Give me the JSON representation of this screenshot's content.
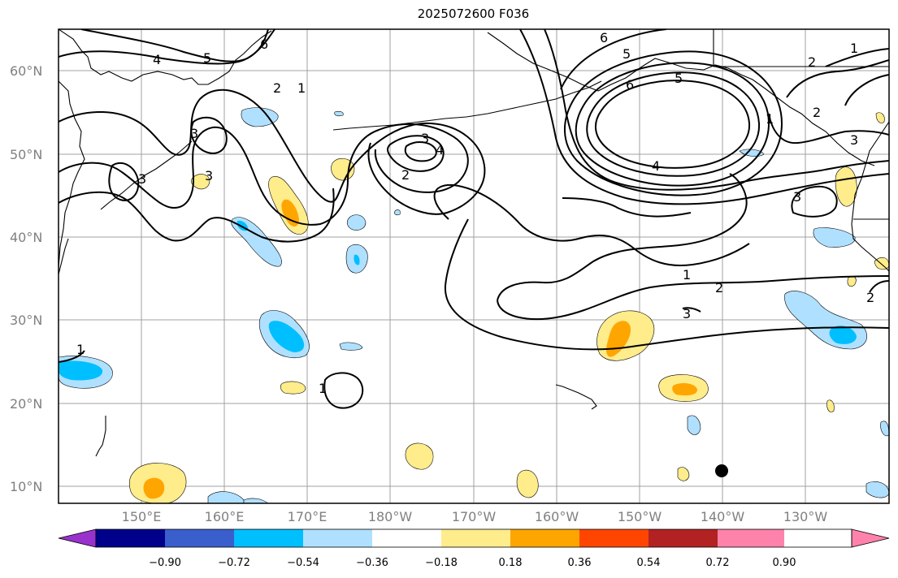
{
  "title": "2025072600 F036",
  "lat_labels": [
    "60°N",
    "50°N",
    "40°N",
    "30°N",
    "20°N",
    "10°N"
  ],
  "lon_labels": [
    "150°E",
    "160°E",
    "170°E",
    "180°W",
    "170°W",
    "160°W",
    "150°W",
    "140°W",
    "130°W"
  ],
  "colorbar": {
    "tick_labels": [
      "−0.90",
      "−0.72",
      "−0.54",
      "−0.36",
      "−0.18",
      "0.18",
      "0.36",
      "0.54",
      "0.72",
      "0.90"
    ],
    "colors": [
      "#9932cc",
      "#00008b",
      "#3a5fcd",
      "#00bfff",
      "#b0e0ff",
      "#ffffff",
      "#ffec8b",
      "#ffa500",
      "#ff4500",
      "#b22222",
      "#ff82ab"
    ]
  },
  "contour_labels": [
    "6",
    "5",
    "4",
    "2",
    "1",
    "3",
    "3",
    "3",
    "3",
    "4",
    "2",
    "5",
    "6",
    "6",
    "5",
    "4",
    "1",
    "2",
    "1",
    "2",
    "3",
    "3",
    "1",
    "2",
    "3",
    "2",
    "1",
    "1"
  ],
  "colors": {
    "gridline": "#a0a0a0",
    "coastline": "#000000",
    "contour": "#000000",
    "positive_light": "#ffec8b",
    "positive_mid": "#ffa500",
    "negative_light": "#b0e0ff",
    "negative_mid": "#00bfff"
  }
}
